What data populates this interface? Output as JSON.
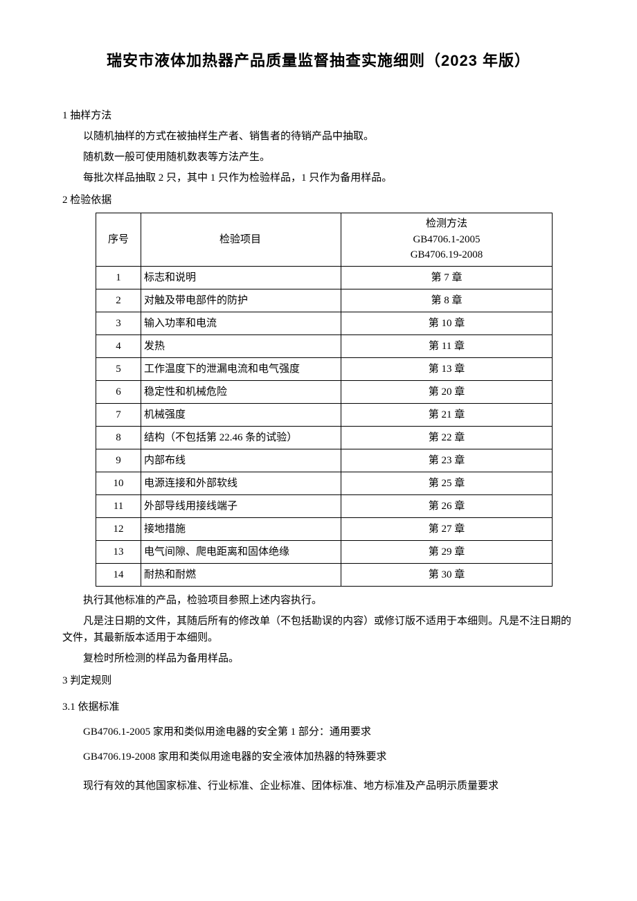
{
  "title": "瑞安市液体加热器产品质量监督抽查实施细则（2023 年版）",
  "s1": {
    "head": "1 抽样方法",
    "p1": "以随机抽样的方式在被抽样生产者、销售者的待销产品中抽取。",
    "p2": "随机数一般可使用随机数表等方法产生。",
    "p3": "每批次样品抽取 2 只，其中 1 只作为检验样品，1 只作为备用样品。"
  },
  "s2": {
    "head": "2 检验依据",
    "table": {
      "header": {
        "seq": "序号",
        "item": "检验项目",
        "method_l1": "检测方法",
        "method_l2": "GB4706.1-2005",
        "method_l3": "GB4706.19-2008"
      },
      "rows": [
        {
          "seq": "1",
          "item": "标志和说明",
          "method": "第 7 章"
        },
        {
          "seq": "2",
          "item": "对触及带电部件的防护",
          "method": "第 8 章"
        },
        {
          "seq": "3",
          "item": "输入功率和电流",
          "method": "第 10 章"
        },
        {
          "seq": "4",
          "item": "发热",
          "method": "第 11 章"
        },
        {
          "seq": "5",
          "item": "工作温度下的泄漏电流和电气强度",
          "method": "第 13 章"
        },
        {
          "seq": "6",
          "item": "稳定性和机械危险",
          "method": "第 20 章"
        },
        {
          "seq": "7",
          "item": "机械强度",
          "method": "第 21 章"
        },
        {
          "seq": "8",
          "item": "结构（不包括第 22.46 条的试验）",
          "method": "第 22 章"
        },
        {
          "seq": "9",
          "item": "内部布线",
          "method": "第 23 章"
        },
        {
          "seq": "10",
          "item": "电源连接和外部软线",
          "method": "第 25 章"
        },
        {
          "seq": "11",
          "item": "外部导线用接线端子",
          "method": "第 26 章"
        },
        {
          "seq": "12",
          "item": "接地措施",
          "method": "第 27 章"
        },
        {
          "seq": "13",
          "item": "电气间隙、爬电距离和固体绝缘",
          "method": "第 29 章"
        },
        {
          "seq": "14",
          "item": "耐热和耐燃",
          "method": "第 30 章"
        }
      ]
    },
    "p1": "执行其他标准的产品，检验项目参照上述内容执行。",
    "p2": "凡是注日期的文件，其随后所有的修改单（不包括勘误的内容）或修订版不适用于本细则。凡是不注日期的文件，其最新版本适用于本细则。",
    "p3": "复检时所检测的样品为备用样品。"
  },
  "s3": {
    "head": "3 判定规则",
    "sub1": "3.1   依据标准",
    "std1": "GB4706.1-2005 家用和类似用途电器的安全第 1 部分：通用要求",
    "std2": "GB4706.19-2008 家用和类似用途电器的安全液体加热器的特殊要求",
    "std3": "现行有效的其他国家标准、行业标准、企业标准、团体标准、地方标准及产品明示质量要求"
  }
}
